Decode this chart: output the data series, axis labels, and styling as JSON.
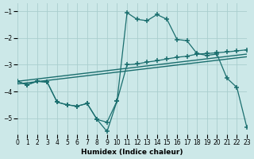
{
  "bg_color": "#cce8e8",
  "grid_color": "#aacece",
  "line_color": "#1a6e6e",
  "xlabel": "Humidex (Indice chaleur)",
  "xlim": [
    0,
    23
  ],
  "ylim": [
    -5.6,
    -0.7
  ],
  "yticks": [
    -5,
    -4,
    -3,
    -2,
    -1
  ],
  "xticks": [
    0,
    1,
    2,
    3,
    4,
    5,
    6,
    7,
    8,
    9,
    10,
    11,
    12,
    13,
    14,
    15,
    16,
    17,
    18,
    19,
    20,
    21,
    22,
    23
  ],
  "trend1_x": [
    0,
    23
  ],
  "trend1_y": [
    -3.62,
    -2.6
  ],
  "trend2_x": [
    0,
    23
  ],
  "trend2_y": [
    -3.72,
    -2.7
  ],
  "zigzag1_x": [
    0,
    1,
    2,
    3,
    4,
    5,
    6,
    7,
    8,
    9,
    10,
    11,
    12,
    13,
    14,
    15,
    16,
    17,
    18,
    19,
    20,
    21,
    22,
    23
  ],
  "zigzag1_y": [
    -3.62,
    -3.75,
    -3.62,
    -3.65,
    -4.4,
    -4.5,
    -4.55,
    -4.45,
    -5.05,
    -5.5,
    -4.35,
    -3.0,
    -2.97,
    -2.9,
    -2.85,
    -2.78,
    -2.72,
    -2.68,
    -2.6,
    -2.58,
    -2.55,
    -2.52,
    -2.48,
    -2.44
  ],
  "zigzag2_x": [
    0,
    1,
    2,
    3,
    4,
    5,
    6,
    7,
    8,
    9,
    10,
    11,
    12,
    13,
    14,
    15,
    16,
    17,
    18,
    19,
    20,
    21,
    22,
    23
  ],
  "zigzag2_y": [
    -3.62,
    -3.75,
    -3.62,
    -3.65,
    -4.4,
    -4.5,
    -4.55,
    -4.45,
    -5.05,
    -5.15,
    -4.35,
    -1.05,
    -1.3,
    -1.35,
    -1.12,
    -1.3,
    -2.05,
    -2.1,
    -2.58,
    -2.65,
    -2.6,
    -3.5,
    -3.85,
    -5.35
  ]
}
